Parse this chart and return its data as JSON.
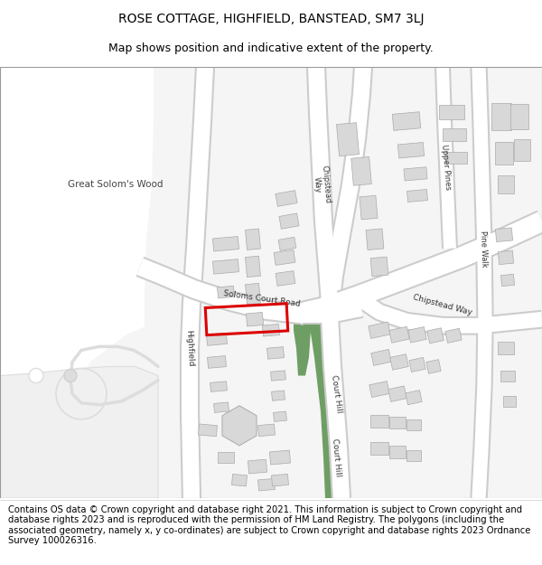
{
  "title_line1": "ROSE COTTAGE, HIGHFIELD, BANSTEAD, SM7 3LJ",
  "title_line2": "Map shows position and indicative extent of the property.",
  "footer_text": "Contains OS data © Crown copyright and database right 2021. This information is subject to Crown copyright and database rights 2023 and is reproduced with the permission of HM Land Registry. The polygons (including the associated geometry, namely x, y co-ordinates) are subject to Crown copyright and database rights 2023 Ordnance Survey 100026316.",
  "map_bg": "#f0ede8",
  "green_color": "#6e9e63",
  "white_area": "#f8f8f8",
  "road_white": "#ffffff",
  "road_edge": "#c8c8c8",
  "building_fill": "#d8d8d8",
  "building_edge": "#aaaaaa",
  "highlight_color": "#dd0000",
  "text_color": "#333333",
  "title_fontsize": 10,
  "subtitle_fontsize": 9,
  "footer_fontsize": 7.2
}
